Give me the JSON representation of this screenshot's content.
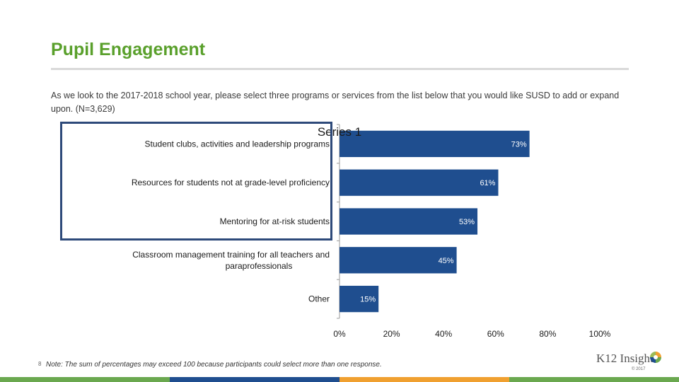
{
  "page": {
    "title": "Pupil Engagement",
    "question": "As we look to the 2017-2018 school year, please select three programs or services from the list below that you would like SUSD to add or expand upon. (N=3,629)",
    "footnote": "Note: The sum of percentages may exceed 100 because participants could select more than one response.",
    "page_number": "8",
    "logo_text": "K12 Insight",
    "copyright": "© 2017",
    "colors": {
      "title": "#5aa02c",
      "bar": "#1f4e8f",
      "bottom_bar": [
        "#6aa84f",
        "#1f4e8f",
        "#f0a030",
        "#6aa84f"
      ]
    }
  },
  "chart_data": {
    "type": "bar",
    "orientation": "horizontal",
    "title": "Series 1",
    "categories": [
      "Student clubs, activities and leadership programs",
      "Resources for students not at grade-level proficiency",
      "Mentoring for at-risk students",
      "Classroom management training for all teachers and paraprofessionals",
      "Other"
    ],
    "category_lines": [
      [
        "Student clubs, activities and leadership programs"
      ],
      [
        "Resources for students not at grade-level proficiency"
      ],
      [
        "Mentoring for at-risk students"
      ],
      [
        "Classroom management training for all teachers and",
        "paraprofessionals"
      ],
      [
        "Other"
      ]
    ],
    "values": [
      73,
      61,
      53,
      45,
      15
    ],
    "data_labels": [
      "73%",
      "61%",
      "53%",
      "45%",
      "15%"
    ],
    "xlim": [
      0,
      100
    ],
    "xticks": [
      0,
      20,
      40,
      60,
      80,
      100
    ],
    "xtick_labels": [
      "0%",
      "20%",
      "40%",
      "60%",
      "80%",
      "100%"
    ],
    "xlabel": "",
    "ylabel": "",
    "grid": false,
    "legend": "none"
  }
}
